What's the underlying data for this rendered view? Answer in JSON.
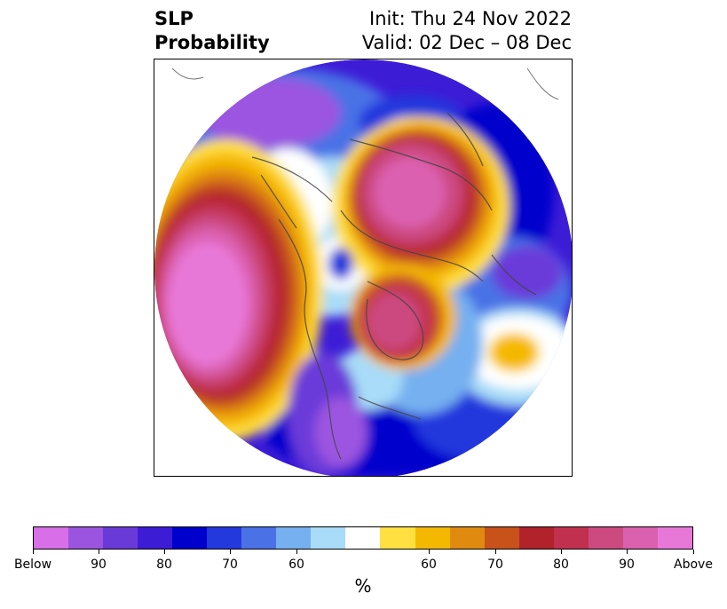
{
  "title": {
    "left_line1": "SLP",
    "left_line2": "Probability",
    "right_line1": "Init: Thu 24 Nov 2022",
    "right_line2": "Valid: 02 Dec – 08 Dec"
  },
  "colorbar": {
    "colors": [
      "#d86ee8",
      "#9b54e0",
      "#6a3ad9",
      "#3d1cd6",
      "#0000cc",
      "#2339dd",
      "#4a72e6",
      "#76b0f0",
      "#a8dcf8",
      "#ffffff",
      "#ffe040",
      "#f5b800",
      "#e08a10",
      "#c8521a",
      "#b2222a",
      "#c23050",
      "#cc4a80",
      "#dc60b0",
      "#e878d8"
    ],
    "tick_labels": [
      "Below",
      "90",
      "80",
      "70",
      "60",
      "60",
      "70",
      "80",
      "90",
      "Above"
    ],
    "unit": "%"
  }
}
